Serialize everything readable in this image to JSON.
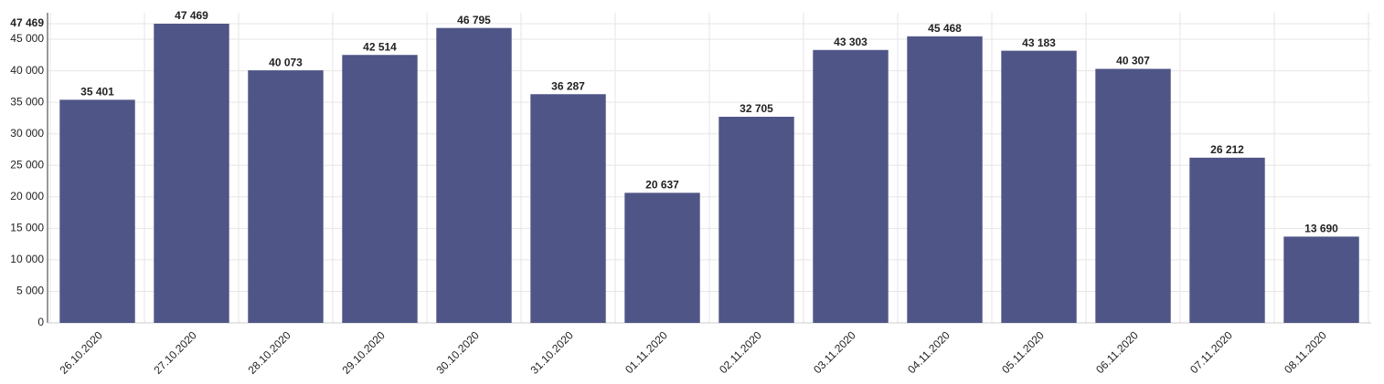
{
  "chart_data": {
    "type": "bar",
    "categories": [
      "26.10.2020",
      "27.10.2020",
      "28.10.2020",
      "29.10.2020",
      "30.10.2020",
      "31.10.2020",
      "01.11.2020",
      "02.11.2020",
      "03.11.2020",
      "04.11.2020",
      "05.11.2020",
      "06.11.2020",
      "07.11.2020",
      "08.11.2020"
    ],
    "values": [
      35401,
      47469,
      40073,
      42514,
      46795,
      36287,
      20637,
      32705,
      43303,
      45468,
      43183,
      40307,
      26212,
      13690
    ],
    "value_labels": [
      "35 401",
      "47 469",
      "40 073",
      "42 514",
      "46 795",
      "36 287",
      "20 637",
      "32 705",
      "43 303",
      "45 468",
      "43 183",
      "40 307",
      "26 212",
      "13 690"
    ],
    "color": "#4f5586",
    "ylim": [
      0,
      47469
    ],
    "yticks": [
      0,
      {
        "value": 5000,
        "label": "5 000"
      },
      {
        "value": 10000,
        "label": "10 000"
      },
      {
        "value": 15000,
        "label": "15 000"
      },
      {
        "value": 20000,
        "label": "20 000"
      },
      {
        "value": 25000,
        "label": "25 000"
      },
      {
        "value": 30000,
        "label": "30 000"
      },
      {
        "value": 35000,
        "label": "35 000"
      },
      {
        "value": 40000,
        "label": "40 000"
      },
      {
        "value": 45000,
        "label": "45 000"
      },
      {
        "value": 47469,
        "label": "47 469"
      }
    ],
    "grid": true
  }
}
